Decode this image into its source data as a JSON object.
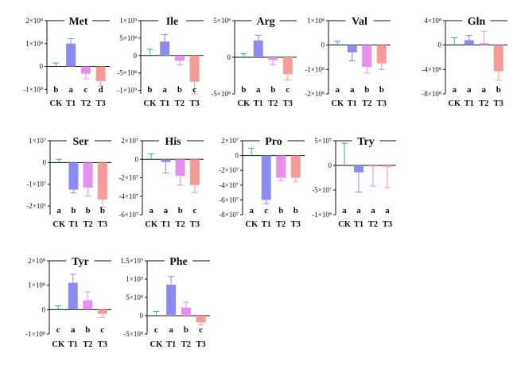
{
  "colors": {
    "CK": "#2bb98a",
    "T1": "#8b8bf5",
    "T2": "#e88ef0",
    "T3": "#f79a98",
    "axis": "#111111"
  },
  "chart_data": [
    {
      "type": "bar",
      "title": "Met",
      "categories": [
        "CK",
        "T1",
        "T2",
        "T3"
      ],
      "values": [
        0,
        100000000.0,
        -32000000.0,
        -65000000.0
      ],
      "errors": [
        15000000.0,
        22000000.0,
        22000000.0,
        20000000.0
      ],
      "significance": [
        "b",
        "a",
        "c",
        "d"
      ],
      "ylim": [
        -120000000.0,
        200000000.0
      ],
      "yticks": [
        -100000000.0,
        0,
        100000000.0,
        200000000.0
      ],
      "ytick_labels": [
        "-1×10⁸",
        "0",
        "1×10⁸",
        "2×10⁸"
      ]
    },
    {
      "type": "bar",
      "title": "Ile",
      "categories": [
        "CK",
        "T1",
        "T2",
        "T3"
      ],
      "values": [
        0,
        400000000.0,
        -150000000.0,
        -750000000.0
      ],
      "errors": [
        180000000.0,
        200000000.0,
        120000000.0,
        350000000.0
      ],
      "significance": [
        "b",
        "a",
        "b",
        "c"
      ],
      "ylim": [
        -1100000000.0,
        1000000000.0
      ],
      "yticks": [
        -1000000000.0,
        -500000000.0,
        0,
        500000000.0,
        1000000000.0
      ],
      "ytick_labels": [
        "-1×10⁹",
        "-5×10⁸",
        "0",
        "5×10⁸",
        "1×10⁹"
      ]
    },
    {
      "type": "bar",
      "title": "Arg",
      "categories": [
        "CK",
        "T1",
        "T2",
        "T3"
      ],
      "values": [
        0,
        230000000.0,
        -40000000.0,
        -230000000.0
      ],
      "errors": [
        50000000.0,
        70000000.0,
        60000000.0,
        80000000.0
      ],
      "significance": [
        "b",
        "a",
        "b",
        "c"
      ],
      "ylim": [
        -500000000.0,
        500000000.0
      ],
      "yticks": [
        -500000000.0,
        0,
        500000000.0
      ],
      "ytick_labels": [
        "-5×10⁸",
        "0",
        "5×10⁸"
      ]
    },
    {
      "type": "bar",
      "title": "Val",
      "categories": [
        "CK",
        "T1",
        "T2",
        "T3"
      ],
      "values": [
        0,
        -30000000.0,
        -90000000.0,
        -75000000.0
      ],
      "errors": [
        15000000.0,
        35000000.0,
        25000000.0,
        25000000.0
      ],
      "significance": [
        "a",
        "a",
        "b",
        "b"
      ],
      "ylim": [
        -200000000.0,
        100000000.0
      ],
      "yticks": [
        -200000000.0,
        -100000000.0,
        0,
        100000000.0
      ],
      "ytick_labels": [
        "-2×10⁸",
        "-1×10⁸",
        "0",
        "1×10⁸"
      ]
    },
    {
      "type": "bar",
      "title": "Gln",
      "categories": [
        "CK",
        "T1",
        "T2",
        "T3"
      ],
      "values": [
        0,
        80000000.0,
        30000000.0,
        -430000000.0
      ],
      "errors": [
        120000000.0,
        80000000.0,
        200000000.0,
        150000000.0
      ],
      "significance": [
        "a",
        "a",
        "a",
        "b"
      ],
      "ylim": [
        -800000000.0,
        400000000.0
      ],
      "yticks": [
        -800000000.0,
        -400000000.0,
        0,
        400000000.0
      ],
      "ytick_labels": [
        "-8×10⁸",
        "-4×10⁸",
        "0",
        "4×10⁸"
      ]
    },
    {
      "type": "bar",
      "title": "Ser",
      "categories": [
        "CK",
        "T1",
        "T2",
        "T3"
      ],
      "values": [
        0,
        -12500000.0,
        -11500000.0,
        -17000000.0
      ],
      "errors": [
        1500000.0,
        1500000.0,
        4000000.0,
        3500000.0
      ],
      "significance": [
        "a",
        "b",
        "b",
        "b"
      ],
      "ylim": [
        -24000000.0,
        10000000.0
      ],
      "yticks": [
        -20000000.0,
        -10000000.0,
        0,
        10000000.0
      ],
      "ytick_labels": [
        "-2×10⁷",
        "-1×10⁷",
        "0",
        "1×10⁷"
      ]
    },
    {
      "type": "bar",
      "title": "His",
      "categories": [
        "CK",
        "T1",
        "T2",
        "T3"
      ],
      "values": [
        0,
        -3000000.0,
        -18000000.0,
        -28000000.0
      ],
      "errors": [
        6000000.0,
        12000000.0,
        10000000.0,
        8000000.0
      ],
      "significance": [
        "a",
        "a",
        "b",
        "c"
      ],
      "ylim": [
        -60000000.0,
        20000000.0
      ],
      "yticks": [
        -60000000.0,
        -40000000.0,
        -20000000.0,
        0,
        20000000.0
      ],
      "ytick_labels": [
        "-6×10⁷",
        "-4×10⁷",
        "-2×10⁷",
        "0",
        "2×10⁷"
      ]
    },
    {
      "type": "bar",
      "title": "Pro",
      "categories": [
        "CK",
        "T1",
        "T2",
        "T3"
      ],
      "values": [
        0,
        -60000000.0,
        -30000000.0,
        -30000000.0
      ],
      "errors": [
        10000000.0,
        5000000.0,
        4000000.0,
        5000000.0
      ],
      "significance": [
        "a",
        "c",
        "b",
        "b"
      ],
      "ylim": [
        -80000000.0,
        20000000.0
      ],
      "yticks": [
        -80000000.0,
        -60000000.0,
        -40000000.0,
        -20000000.0,
        0,
        20000000.0
      ],
      "ytick_labels": [
        "-8×10⁷",
        "-6×10⁷",
        "-4×10⁷",
        "-2×10⁷",
        "0",
        "2×10⁷"
      ]
    },
    {
      "type": "bar",
      "title": "Try",
      "categories": [
        "CK",
        "T1",
        "T2",
        "T3"
      ],
      "values": [
        0,
        -14000000.0,
        -2000000.0,
        -3000000.0
      ],
      "errors": [
        45000000.0,
        40000000.0,
        40000000.0,
        42000000.0
      ],
      "significance": [
        "a",
        "a",
        "a",
        "a"
      ],
      "ylim": [
        -100000000.0,
        50000000.0
      ],
      "yticks": [
        -100000000.0,
        -50000000.0,
        0,
        50000000.0
      ],
      "ytick_labels": [
        "-1×10⁸",
        "-5×10⁷",
        "0",
        "5×10⁷"
      ]
    },
    {
      "type": "bar",
      "title": "Tyr",
      "categories": [
        "CK",
        "T1",
        "T2",
        "T3"
      ],
      "values": [
        0,
        110000000.0,
        38000000.0,
        -18000000.0
      ],
      "errors": [
        16000000.0,
        35000000.0,
        35000000.0,
        15000000.0
      ],
      "significance": [
        "c",
        "a",
        "b",
        "c"
      ],
      "ylim": [
        -100000000.0,
        200000000.0
      ],
      "yticks": [
        -100000000.0,
        0,
        100000000.0,
        200000000.0
      ],
      "ytick_labels": [
        "-1×10⁸",
        "0",
        "1×10⁸",
        "2×10⁸"
      ]
    },
    {
      "type": "bar",
      "title": "Phe",
      "categories": [
        "CK",
        "T1",
        "T2",
        "T3"
      ],
      "values": [
        0,
        850000000.0,
        220000000.0,
        -180000000.0
      ],
      "errors": [
        120000000.0,
        220000000.0,
        150000000.0,
        60000000.0
      ],
      "significance": [
        "c",
        "a",
        "b",
        "c"
      ],
      "ylim": [
        -500000000.0,
        1500000000.0
      ],
      "yticks": [
        -500000000.0,
        0,
        500000000.0,
        1000000000.0,
        1500000000.0
      ],
      "ytick_labels": [
        "-5×10⁸",
        "0",
        "5×10⁸",
        "1×10⁹",
        "1.5×10⁹"
      ]
    }
  ]
}
